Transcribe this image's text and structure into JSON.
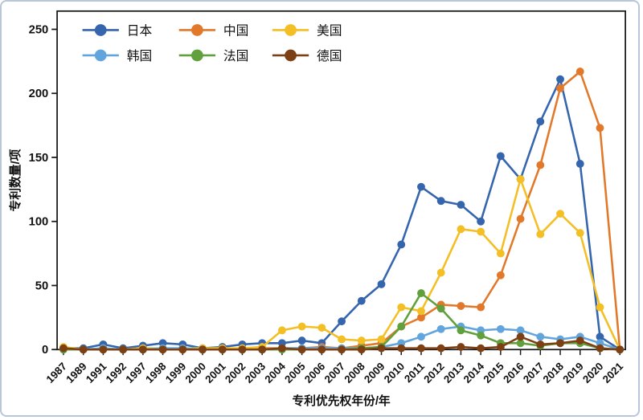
{
  "figure": {
    "border_color": "#b9c6da",
    "background": "#ffffff",
    "axis_color": "#1a1a1a"
  },
  "chart_data": {
    "type": "line",
    "title": "",
    "xlabel": "专利优先权年份/年",
    "ylabel": "专利数量/项",
    "ylim": [
      0,
      250
    ],
    "yticks": [
      0,
      50,
      100,
      150,
      200,
      250
    ],
    "grid": false,
    "legend_position": "top-left-inside",
    "categories": [
      "1987",
      "1989",
      "1991",
      "1992",
      "1997",
      "1998",
      "1999",
      "2000",
      "2001",
      "2002",
      "2003",
      "2004",
      "2005",
      "2006",
      "2007",
      "2008",
      "2009",
      "2010",
      "2011",
      "2012",
      "2013",
      "2014",
      "2015",
      "2016",
      "2017",
      "2018",
      "2019",
      "2020",
      "2021"
    ],
    "series": [
      {
        "name": "日本",
        "color": "#3465ad",
        "values": [
          1,
          1,
          4,
          1,
          3,
          5,
          4,
          1,
          2,
          4,
          5,
          5,
          7,
          5,
          22,
          38,
          51,
          82,
          127,
          116,
          113,
          100,
          151,
          133,
          178,
          211,
          145,
          10,
          0
        ]
      },
      {
        "name": "中国",
        "color": "#e2782a",
        "values": [
          1,
          0,
          0,
          0,
          0,
          0,
          0,
          0,
          0,
          0,
          1,
          1,
          1,
          2,
          1,
          3,
          5,
          18,
          25,
          35,
          34,
          33,
          58,
          102,
          144,
          204,
          217,
          173,
          0
        ]
      },
      {
        "name": "美国",
        "color": "#f3bf24",
        "values": [
          2,
          0,
          1,
          0,
          1,
          1,
          1,
          1,
          1,
          1,
          2,
          15,
          18,
          17,
          8,
          7,
          8,
          33,
          30,
          60,
          94,
          92,
          75,
          133,
          90,
          106,
          91,
          33,
          0
        ]
      },
      {
        "name": "韩国",
        "color": "#62a5dc",
        "values": [
          0,
          0,
          1,
          0,
          0,
          1,
          1,
          0,
          0,
          0,
          0,
          1,
          1,
          1,
          1,
          1,
          2,
          5,
          10,
          16,
          18,
          15,
          16,
          15,
          10,
          8,
          10,
          5,
          0
        ]
      },
      {
        "name": "法国",
        "color": "#61a03c",
        "values": [
          0,
          0,
          0,
          0,
          0,
          0,
          0,
          0,
          0,
          0,
          0,
          0,
          0,
          0,
          0,
          1,
          2,
          18,
          44,
          32,
          15,
          11,
          5,
          5,
          3,
          5,
          5,
          1,
          0
        ]
      },
      {
        "name": "德国",
        "color": "#7d3f14",
        "values": [
          1,
          0,
          0,
          0,
          0,
          0,
          0,
          0,
          0,
          0,
          0,
          1,
          0,
          0,
          0,
          0,
          1,
          1,
          1,
          1,
          2,
          1,
          2,
          10,
          4,
          5,
          7,
          1,
          0
        ]
      }
    ]
  }
}
